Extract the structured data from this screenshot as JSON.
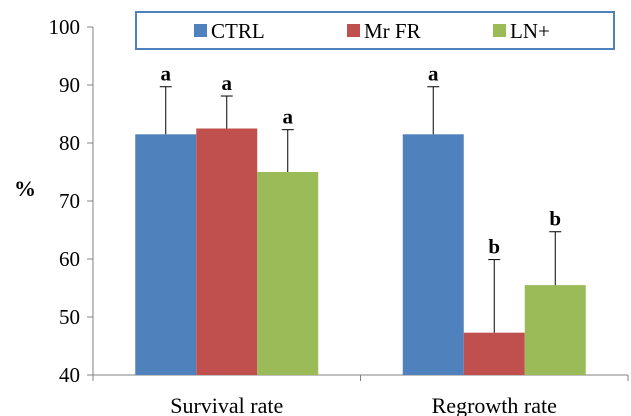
{
  "chart_data": {
    "type": "bar",
    "ylabel": "%",
    "xlabel": "",
    "ylim": [
      40,
      100
    ],
    "yticks": [
      40,
      50,
      60,
      70,
      80,
      90,
      100
    ],
    "categories": [
      "Survival rate",
      "Regrowth rate"
    ],
    "series": [
      {
        "name": "CTRL",
        "color": "#4F81BD",
        "values": [
          81.5,
          81.5
        ],
        "errors": [
          8.2,
          8.2
        ],
        "sig": [
          "a",
          "a"
        ]
      },
      {
        "name": "Mr FR",
        "color": "#C0504D",
        "values": [
          82.5,
          47.3
        ],
        "errors": [
          5.6,
          12.6
        ],
        "sig": [
          "a",
          "b"
        ]
      },
      {
        "name": "LN+",
        "color": "#9BBB59",
        "values": [
          75.0,
          55.5
        ],
        "errors": [
          7.3,
          9.2
        ],
        "sig": [
          "a",
          "b"
        ]
      }
    ],
    "legend": {
      "position": "top",
      "border_color": "#4F81BD"
    },
    "grid": false
  }
}
